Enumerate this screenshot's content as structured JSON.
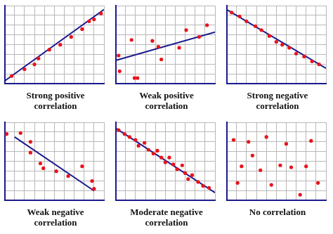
{
  "chart_data": [
    {
      "type": "scatter",
      "title": "Strong positive correlation",
      "grid": true,
      "tick_labels": false,
      "xlim": [
        0,
        10
      ],
      "ylim": [
        0,
        8
      ],
      "xticks": [
        0,
        1,
        2,
        3,
        4,
        5,
        6,
        7,
        8,
        9,
        10
      ],
      "yticks": [
        0,
        1,
        2,
        3,
        4,
        5,
        6,
        7,
        8
      ],
      "series": [
        {
          "type": "scatter",
          "color": "#e8141b",
          "x": [
            0.7,
            2.0,
            3.0,
            3.4,
            4.5,
            5.6,
            6.7,
            7.8,
            8.5,
            9.0,
            9.7
          ],
          "values": [
            0.8,
            1.5,
            2.0,
            2.6,
            3.5,
            4.0,
            4.8,
            5.6,
            6.4,
            6.6,
            7.2
          ]
        },
        {
          "type": "line",
          "color": "#1a1a8c",
          "x": [
            0,
            10
          ],
          "values": [
            0.3,
            7.6
          ]
        }
      ]
    },
    {
      "type": "scatter",
      "title": "Weak positive correlation",
      "grid": true,
      "tick_labels": false,
      "xlim": [
        0,
        10
      ],
      "ylim": [
        0,
        8
      ],
      "xticks": [
        0,
        1,
        2,
        3,
        4,
        5,
        6,
        7,
        8,
        9,
        10
      ],
      "yticks": [
        0,
        1,
        2,
        3,
        4,
        5,
        6,
        7,
        8
      ],
      "series": [
        {
          "type": "scatter",
          "color": "#e8141b",
          "x": [
            0.3,
            0.4,
            1.6,
            1.9,
            2.2,
            3.7,
            4.3,
            4.6,
            6.4,
            7.1,
            8.4,
            9.2
          ],
          "values": [
            2.9,
            1.3,
            4.5,
            0.6,
            0.6,
            4.4,
            3.8,
            2.5,
            3.7,
            5.5,
            4.8,
            6.0
          ]
        },
        {
          "type": "line",
          "color": "#1a1a8c",
          "x": [
            0,
            10
          ],
          "values": [
            2.4,
            5.3
          ]
        }
      ]
    },
    {
      "type": "scatter",
      "title": "Strong negative correlation",
      "grid": true,
      "tick_labels": false,
      "xlim": [
        0,
        10
      ],
      "ylim": [
        0,
        8
      ],
      "xticks": [
        0,
        1,
        2,
        3,
        4,
        5,
        6,
        7,
        8,
        9,
        10
      ],
      "yticks": [
        0,
        1,
        2,
        3,
        4,
        5,
        6,
        7,
        8
      ],
      "series": [
        {
          "type": "scatter",
          "color": "#e8141b",
          "x": [
            0.5,
            1.3,
            2.0,
            2.9,
            3.5,
            4.3,
            5.0,
            5.6,
            6.3,
            7.0,
            7.8,
            8.6,
            9.3
          ],
          "values": [
            7.3,
            6.9,
            6.4,
            5.9,
            5.5,
            4.9,
            4.3,
            4.0,
            3.7,
            3.1,
            2.8,
            2.3,
            2.0
          ]
        },
        {
          "type": "line",
          "color": "#1a1a8c",
          "x": [
            0,
            10
          ],
          "values": [
            7.6,
            1.6
          ]
        }
      ]
    },
    {
      "type": "scatter",
      "title": "Weak negative correlation",
      "grid": true,
      "tick_labels": false,
      "xlim": [
        0,
        10
      ],
      "ylim": [
        0,
        8
      ],
      "xticks": [
        0,
        1,
        2,
        3,
        4,
        5,
        6,
        7,
        8,
        9,
        10
      ],
      "yticks": [
        0,
        1,
        2,
        3,
        4,
        5,
        6,
        7,
        8
      ],
      "series": [
        {
          "type": "scatter",
          "color": "#e8141b",
          "x": [
            0.2,
            1.6,
            2.6,
            2.6,
            3.6,
            3.9,
            5.2,
            6.4,
            7.8,
            8.8,
            9.0
          ],
          "values": [
            6.8,
            6.9,
            6.0,
            4.9,
            3.8,
            3.3,
            3.0,
            2.5,
            3.5,
            2.0,
            1.2
          ]
        },
        {
          "type": "line",
          "color": "#1a1a8c",
          "x": [
            1,
            9
          ],
          "values": [
            6.5,
            1.0
          ]
        }
      ]
    },
    {
      "type": "scatter",
      "title": "Moderate negative correlation",
      "grid": true,
      "tick_labels": false,
      "xlim": [
        0,
        10
      ],
      "ylim": [
        0,
        8
      ],
      "xticks": [
        0,
        1,
        2,
        3,
        4,
        5,
        6,
        7,
        8,
        9,
        10
      ],
      "yticks": [
        0,
        1,
        2,
        3,
        4,
        5,
        6,
        7,
        8
      ],
      "series": [
        {
          "type": "scatter",
          "color": "#e8141b",
          "x": [
            0.3,
            0.9,
            1.4,
            2.0,
            2.3,
            2.9,
            3.3,
            3.8,
            4.2,
            4.6,
            5.0,
            5.4,
            5.8,
            6.2,
            6.7,
            7.0,
            7.3,
            7.7,
            8.3,
            8.8,
            9.4
          ],
          "values": [
            7.2,
            6.8,
            6.5,
            6.2,
            5.6,
            5.9,
            5.2,
            4.8,
            5.1,
            4.4,
            3.9,
            4.4,
            3.7,
            3.2,
            3.6,
            2.8,
            2.2,
            2.6,
            1.9,
            1.5,
            1.3
          ]
        },
        {
          "type": "line",
          "color": "#1a1a8c",
          "x": [
            0,
            10
          ],
          "values": [
            7.4,
            0.8
          ]
        }
      ]
    },
    {
      "type": "scatter",
      "title": "No correlation",
      "grid": true,
      "tick_labels": false,
      "xlim": [
        0,
        10
      ],
      "ylim": [
        0,
        8
      ],
      "xticks": [
        0,
        1,
        2,
        3,
        4,
        5,
        6,
        7,
        8,
        9,
        10
      ],
      "yticks": [
        0,
        1,
        2,
        3,
        4,
        5,
        6,
        7,
        8
      ],
      "series": [
        {
          "type": "scatter",
          "color": "#e8141b",
          "x": [
            0.7,
            1.1,
            1.5,
            2.2,
            2.6,
            3.4,
            4.0,
            4.5,
            5.4,
            6.0,
            6.5,
            7.4,
            8.0,
            8.5,
            9.2
          ],
          "values": [
            6.2,
            1.8,
            3.5,
            6.0,
            4.6,
            3.1,
            6.5,
            1.6,
            3.6,
            5.8,
            3.4,
            0.6,
            3.5,
            6.1,
            1.8
          ]
        }
      ]
    }
  ]
}
